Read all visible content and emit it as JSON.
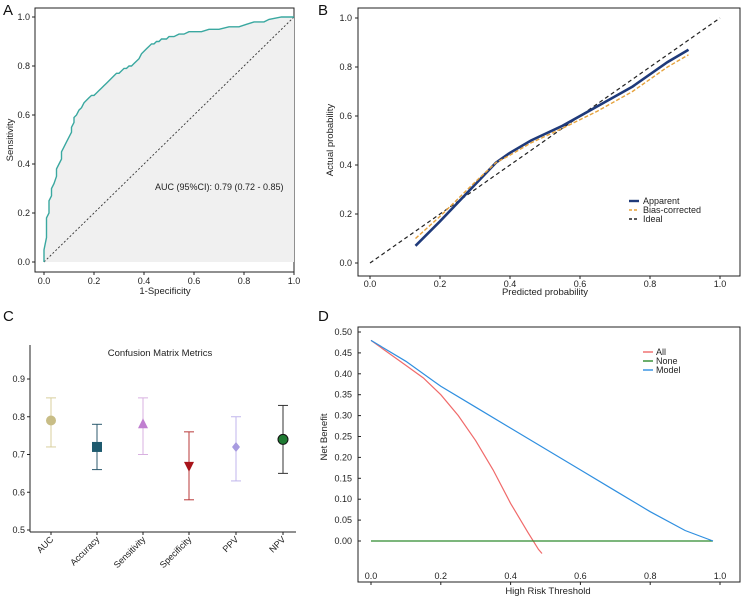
{
  "panels": {
    "A": {
      "letter": "A"
    },
    "B": {
      "letter": "B"
    },
    "C": {
      "letter": "C"
    },
    "D": {
      "letter": "D"
    }
  },
  "chart_data": [
    {
      "id": "A",
      "type": "line",
      "title": "",
      "xlabel": "1-Specificity",
      "ylabel": "Sensitivity",
      "xlim": [
        0,
        1
      ],
      "ylim": [
        0,
        1
      ],
      "xticks": [
        "0.0",
        "0.2",
        "0.4",
        "0.6",
        "0.8",
        "1.0"
      ],
      "yticks": [
        "0.0",
        "0.2",
        "0.4",
        "0.6",
        "0.8",
        "1.0"
      ],
      "annotation": "AUC (95%CI): 0.79 (0.72 - 0.85)",
      "colors": {
        "curve": "#3aa8a0",
        "fill": "#f0f0f0",
        "diagonal": "#333333"
      },
      "series": [
        {
          "name": "ROC",
          "x": [
            0,
            0,
            0.01,
            0.01,
            0.02,
            0.02,
            0.03,
            0.03,
            0.04,
            0.05,
            0.05,
            0.06,
            0.07,
            0.07,
            0.08,
            0.09,
            0.1,
            0.11,
            0.11,
            0.12,
            0.12,
            0.13,
            0.14,
            0.15,
            0.16,
            0.17,
            0.18,
            0.19,
            0.2,
            0.21,
            0.22,
            0.23,
            0.24,
            0.25,
            0.26,
            0.27,
            0.28,
            0.29,
            0.3,
            0.31,
            0.32,
            0.33,
            0.34,
            0.35,
            0.36,
            0.37,
            0.38,
            0.39,
            0.4,
            0.41,
            0.42,
            0.43,
            0.44,
            0.45,
            0.46,
            0.47,
            0.48,
            0.49,
            0.5,
            0.52,
            0.54,
            0.56,
            0.58,
            0.6,
            0.63,
            0.66,
            0.7,
            0.74,
            0.78,
            0.81,
            0.84,
            0.88,
            0.9,
            0.95,
            1.0
          ],
          "y": [
            0,
            0.05,
            0.1,
            0.18,
            0.2,
            0.25,
            0.27,
            0.3,
            0.32,
            0.35,
            0.38,
            0.4,
            0.42,
            0.45,
            0.47,
            0.49,
            0.51,
            0.53,
            0.55,
            0.57,
            0.59,
            0.6,
            0.62,
            0.63,
            0.65,
            0.66,
            0.67,
            0.68,
            0.68,
            0.69,
            0.7,
            0.71,
            0.72,
            0.73,
            0.74,
            0.75,
            0.76,
            0.77,
            0.77,
            0.78,
            0.79,
            0.79,
            0.8,
            0.8,
            0.81,
            0.82,
            0.83,
            0.85,
            0.86,
            0.87,
            0.88,
            0.89,
            0.89,
            0.9,
            0.9,
            0.91,
            0.91,
            0.91,
            0.92,
            0.92,
            0.93,
            0.93,
            0.94,
            0.94,
            0.94,
            0.95,
            0.95,
            0.96,
            0.96,
            0.97,
            0.98,
            0.98,
            0.99,
            1.0,
            1.0
          ]
        },
        {
          "name": "Reference",
          "x": [
            0,
            1
          ],
          "y": [
            0,
            1
          ]
        }
      ]
    },
    {
      "id": "B",
      "type": "line",
      "title": "",
      "xlabel": "Predicted probability",
      "ylabel": "Actual probability",
      "xlim": [
        0,
        1
      ],
      "ylim": [
        0,
        1
      ],
      "xticks": [
        "0.0",
        "0.2",
        "0.4",
        "0.6",
        "0.8",
        "1.0"
      ],
      "yticks": [
        "0.0",
        "0.2",
        "0.4",
        "0.6",
        "0.8",
        "1.0"
      ],
      "legend_position": "bottom-right",
      "series": [
        {
          "name": "Apparent",
          "color": "#1f3a7a",
          "dash": "solid",
          "x": [
            0.13,
            0.2,
            0.3,
            0.36,
            0.4,
            0.46,
            0.55,
            0.65,
            0.75,
            0.85,
            0.91
          ],
          "y": [
            0.07,
            0.17,
            0.32,
            0.41,
            0.45,
            0.5,
            0.56,
            0.64,
            0.72,
            0.82,
            0.87
          ]
        },
        {
          "name": "Bias-corrected",
          "color": "#e6a23c",
          "dash": "dashed",
          "x": [
            0.13,
            0.2,
            0.3,
            0.36,
            0.4,
            0.46,
            0.55,
            0.65,
            0.75,
            0.85,
            0.91
          ],
          "y": [
            0.1,
            0.19,
            0.33,
            0.41,
            0.44,
            0.49,
            0.55,
            0.62,
            0.7,
            0.8,
            0.85
          ]
        },
        {
          "name": "Ideal",
          "color": "#222222",
          "dash": "dashed",
          "x": [
            0,
            1
          ],
          "y": [
            0,
            1
          ]
        }
      ]
    },
    {
      "id": "C",
      "type": "scatter",
      "title": "Confusion Matrix Metrics",
      "xlabel": "",
      "ylabel": "",
      "ylim": [
        0.5,
        0.9
      ],
      "yticks": [
        "0.5",
        "0.6",
        "0.7",
        "0.8",
        "0.9"
      ],
      "categories": [
        "AUC",
        "Accuracy",
        "Sensitivity",
        "Specificity",
        "PPV",
        "NPV"
      ],
      "values": [
        0.79,
        0.72,
        0.78,
        0.67,
        0.72,
        0.74
      ],
      "lower": [
        0.72,
        0.66,
        0.7,
        0.58,
        0.63,
        0.65
      ],
      "upper": [
        0.85,
        0.78,
        0.85,
        0.76,
        0.8,
        0.83
      ],
      "markers": [
        "circle",
        "square",
        "triangle-up",
        "triangle-down",
        "diamond",
        "circle"
      ],
      "colors": [
        "#c8bd86",
        "#1e5a6e",
        "#c07fd0",
        "#a8141a",
        "#a89be0",
        "#1f7a32"
      ],
      "error_colors": [
        "#d8cf9e",
        "#2c5a6e",
        "#d8b0e0",
        "#b83a3a",
        "#c0b6ec",
        "#333333"
      ]
    },
    {
      "id": "D",
      "type": "line",
      "title": "",
      "xlabel": "High Risk Threshold",
      "ylabel": "Net Benefit",
      "xlim": [
        0,
        1
      ],
      "ylim": [
        -0.05,
        0.5
      ],
      "xticks": [
        "0.0",
        "0.2",
        "0.4",
        "0.6",
        "0.8",
        "1.0"
      ],
      "yticks": [
        "0.00",
        "0.05",
        "0.10",
        "0.15",
        "0.20",
        "0.25",
        "0.30",
        "0.35",
        "0.40",
        "0.45",
        "0.50"
      ],
      "legend_position": "top-right",
      "series": [
        {
          "name": "All",
          "color": "#f06a6a",
          "x": [
            0,
            0.05,
            0.1,
            0.15,
            0.2,
            0.25,
            0.3,
            0.35,
            0.4,
            0.45,
            0.48,
            0.49
          ],
          "y": [
            0.48,
            0.45,
            0.42,
            0.39,
            0.35,
            0.3,
            0.24,
            0.17,
            0.09,
            0.02,
            -0.02,
            -0.03
          ]
        },
        {
          "name": "None",
          "color": "#2e8b2e",
          "x": [
            0,
            0.98
          ],
          "y": [
            0,
            0
          ]
        },
        {
          "name": "Model",
          "color": "#2f8fe0",
          "x": [
            0,
            0.1,
            0.2,
            0.3,
            0.4,
            0.5,
            0.6,
            0.7,
            0.8,
            0.9,
            0.98
          ],
          "y": [
            0.48,
            0.43,
            0.37,
            0.32,
            0.27,
            0.22,
            0.17,
            0.12,
            0.07,
            0.025,
            0.0
          ]
        }
      ]
    }
  ]
}
